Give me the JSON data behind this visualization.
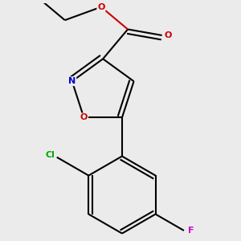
{
  "background_color": "#ebebeb",
  "atom_colors": {
    "C": "#000000",
    "N": "#0000cc",
    "O": "#cc0000",
    "Cl": "#00aa00",
    "F": "#cc00cc"
  },
  "bond_color": "#000000",
  "bond_width": 1.5,
  "dbo": 0.025
}
